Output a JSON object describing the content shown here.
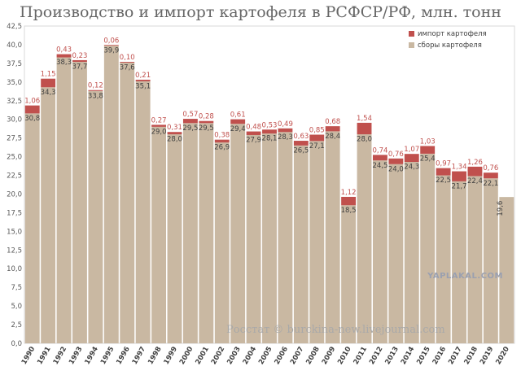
{
  "chart_data": {
    "type": "bar",
    "stacked": true,
    "title": "Производство и импорт картофеля в РСФСР/РФ, млн. тонн",
    "categories": [
      "1990",
      "1991",
      "1992",
      "1993",
      "1994",
      "1995",
      "1996",
      "1997",
      "1998",
      "1999",
      "2000",
      "2001",
      "2002",
      "2003",
      "2004",
      "2005",
      "2006",
      "2007",
      "2008",
      "2009",
      "2010",
      "2011",
      "2012",
      "2013",
      "2014",
      "2015",
      "2016",
      "2017",
      "2018",
      "2019",
      "2020"
    ],
    "series": [
      {
        "name": "сборы картофеля",
        "color": "#c9b8a2",
        "values": [
          30.8,
          34.3,
          38.3,
          37.7,
          33.8,
          39.9,
          37.6,
          35.1,
          29.0,
          28.0,
          29.5,
          29.5,
          26.9,
          29.4,
          27.9,
          28.1,
          28.3,
          26.5,
          27.1,
          28.4,
          18.5,
          28.0,
          24.5,
          24.0,
          24.3,
          25.4,
          22.5,
          21.7,
          22.4,
          22.1,
          19.6
        ],
        "labels": [
          "30,8",
          "34,3",
          "38,3",
          "37,7",
          "33,8",
          "39,9",
          "37,6",
          "35,1",
          "29,0",
          "28,0",
          "29,5",
          "29,5",
          "26,9",
          "29,4",
          "27,9",
          "28,1",
          "28,3",
          "26,5",
          "27,1",
          "28,4",
          "18,5",
          "28,0",
          "24,5",
          "24,0",
          "24,3",
          "25,4",
          "22,5",
          "21,7",
          "22,4",
          "22,1",
          "19,6"
        ]
      },
      {
        "name": "импорт картофеля",
        "color": "#c0504d",
        "values": [
          1.06,
          1.15,
          0.43,
          0.23,
          0.12,
          0.06,
          0.1,
          0.21,
          0.27,
          0.31,
          0.57,
          0.28,
          0.38,
          0.61,
          0.48,
          0.53,
          0.49,
          0.63,
          0.85,
          0.68,
          1.12,
          1.54,
          0.74,
          0.76,
          1.07,
          1.03,
          0.97,
          1.34,
          1.26,
          0.76,
          null
        ],
        "labels": [
          "1,06",
          "1,15",
          "0,43",
          "0,23",
          "0,12",
          "0,06",
          "0,10",
          "0,21",
          "0,27",
          "0,31",
          "0,57",
          "0,28",
          "0,38",
          "0,61",
          "0,48",
          "0,53",
          "0,49",
          "0,63",
          "0,85",
          "0,68",
          "1,12",
          "1,54",
          "0,74",
          "0,76",
          "1,07",
          "1,03",
          "0,97",
          "1,34",
          "1,26",
          "0,76",
          ""
        ]
      }
    ],
    "legend_order": [
      "импорт картофеля",
      "сборы картофеля"
    ],
    "legend_position": "top-right",
    "ylim": [
      0,
      42.5
    ],
    "ytick_labels": [
      "0,0",
      "2,5",
      "5,0",
      "7,5",
      "10,0",
      "12,5",
      "15,0",
      "17,5",
      "20,0",
      "22,5",
      "25,0",
      "27,5",
      "30,0",
      "32,5",
      "35,0",
      "37,5",
      "40,0",
      "42,5"
    ],
    "grid": false
  },
  "watermarks": {
    "yaplakal": "YAPLAKAL.COM",
    "source": "Росстат © burckina-new.livejournal.com"
  }
}
